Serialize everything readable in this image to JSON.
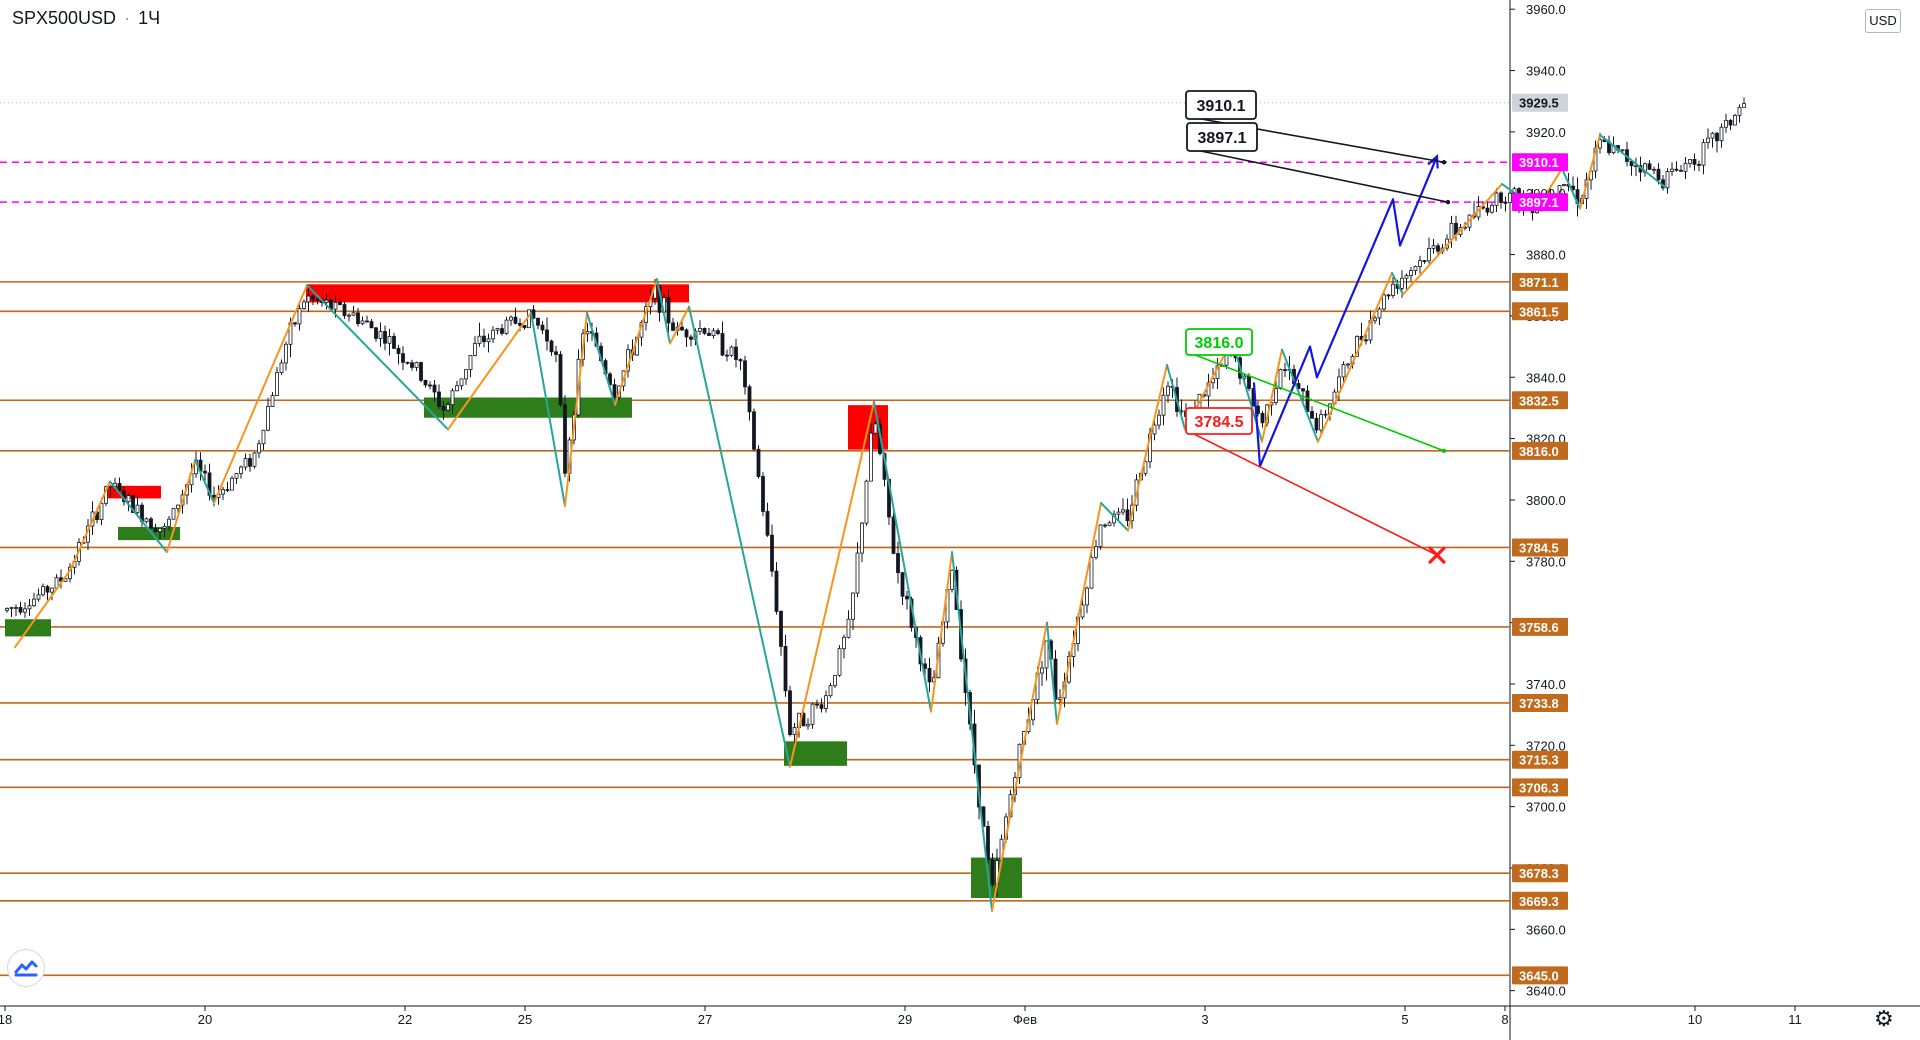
{
  "header": {
    "symbol": "SPX500USD",
    "interval": "1Ч",
    "currency_badge": "USD"
  },
  "icons": {
    "logo": "tradingview-logo-icon",
    "settings": "gear-icon"
  },
  "colors": {
    "level_line": "#c2661a",
    "level_label_bg": "#c06a1e",
    "resistance_line": "#ff00ff",
    "resistance_label_bg": "#ff00ff",
    "current_price_bg": "#cfd3da",
    "supply_zone": "#ff0000",
    "demand_zone": "#2e7d1a",
    "zigzag_up": "#f7941d",
    "zigzag_down": "#26a69a",
    "projection": "#1515e0",
    "candle": "#131722",
    "target_green": "#00cc00",
    "target_red": "#ff1a1a"
  },
  "chart_data": {
    "type": "candlestick",
    "title": "SPX500USD · 1Ч",
    "y_axis": {
      "range": [
        3635,
        3963
      ],
      "ticks": [
        3640.0,
        3660.0,
        3680.0,
        3700.0,
        3720.0,
        3740.0,
        3760.0,
        3780.0,
        3800.0,
        3820.0,
        3840.0,
        3860.0,
        3880.0,
        3900.0,
        3920.0,
        3940.0,
        3960.0
      ]
    },
    "x_axis": {
      "range": [
        0,
        18.5
      ],
      "ticks": [
        {
          "label": "18",
          "x": 0
        },
        {
          "label": "20",
          "x": 2
        },
        {
          "label": "22",
          "x": 4
        },
        {
          "label": "25",
          "x": 5.2
        },
        {
          "label": "27",
          "x": 7
        },
        {
          "label": "29",
          "x": 9
        },
        {
          "label": "Фев",
          "x": 10.2
        },
        {
          "label": "3",
          "x": 12
        },
        {
          "label": "5",
          "x": 14
        },
        {
          "label": "8",
          "x": 15
        },
        {
          "label": "10",
          "x": 16.9
        },
        {
          "label": "11",
          "x": 17.9
        }
      ]
    },
    "current_price": 3929.5,
    "levels": [
      3871.1,
      3861.5,
      3832.5,
      3816.0,
      3784.5,
      3758.6,
      3733.8,
      3715.3,
      3706.3,
      3678.3,
      3669.3,
      3645.0
    ],
    "resistance_levels": [
      3910.1,
      3897.1
    ],
    "zones": [
      {
        "kind": "supply",
        "x0": 1.0,
        "x1": 1.56,
        "y0": 3800.5,
        "y1": 3804.6
      },
      {
        "kind": "demand",
        "x0": 1.13,
        "x1": 1.75,
        "y0": 3786.9,
        "y1": 3791.2
      },
      {
        "kind": "demand",
        "x0": 0.0,
        "x1": 0.46,
        "y0": 3755.5,
        "y1": 3761.1
      },
      {
        "kind": "supply",
        "x0": 3.01,
        "x1": 6.84,
        "y0": 3864.4,
        "y1": 3870.3
      },
      {
        "kind": "demand",
        "x0": 4.19,
        "x1": 6.27,
        "y0": 3826.8,
        "y1": 3833.4
      },
      {
        "kind": "supply",
        "x0": 8.43,
        "x1": 8.83,
        "y0": 3816.4,
        "y1": 3830.9
      },
      {
        "kind": "demand",
        "x0": 7.79,
        "x1": 8.42,
        "y0": 3713.3,
        "y1": 3721.3
      },
      {
        "kind": "demand",
        "x0": 9.66,
        "x1": 10.17,
        "y0": 3670.2,
        "y1": 3683.4
      }
    ],
    "zigzag": [
      {
        "x": 0.1,
        "y": 3752
      },
      {
        "x": 0.65,
        "y": 3777
      },
      {
        "x": 1.05,
        "y": 3806
      },
      {
        "x": 1.62,
        "y": 3783
      },
      {
        "x": 1.9,
        "y": 3813
      },
      {
        "x": 2.09,
        "y": 3799
      },
      {
        "x": 3.02,
        "y": 3870
      },
      {
        "x": 4.43,
        "y": 3823
      },
      {
        "x": 5.26,
        "y": 3861
      },
      {
        "x": 5.6,
        "y": 3798
      },
      {
        "x": 5.82,
        "y": 3861
      },
      {
        "x": 6.1,
        "y": 3831
      },
      {
        "x": 6.52,
        "y": 3872
      },
      {
        "x": 6.65,
        "y": 3851
      },
      {
        "x": 6.84,
        "y": 3863
      },
      {
        "x": 7.85,
        "y": 3713
      },
      {
        "x": 8.69,
        "y": 3832
      },
      {
        "x": 9.26,
        "y": 3731
      },
      {
        "x": 9.47,
        "y": 3783
      },
      {
        "x": 9.87,
        "y": 3666
      },
      {
        "x": 10.42,
        "y": 3760
      },
      {
        "x": 10.52,
        "y": 3727
      },
      {
        "x": 10.96,
        "y": 3799
      },
      {
        "x": 11.23,
        "y": 3790
      },
      {
        "x": 11.62,
        "y": 3844
      },
      {
        "x": 11.8,
        "y": 3823
      },
      {
        "x": 12.27,
        "y": 3852
      },
      {
        "x": 12.57,
        "y": 3819
      },
      {
        "x": 12.77,
        "y": 3849
      },
      {
        "x": 13.13,
        "y": 3819
      },
      {
        "x": 13.87,
        "y": 3874
      },
      {
        "x": 13.98,
        "y": 3867
      },
      {
        "x": 14.97,
        "y": 3903
      },
      {
        "x": 15.32,
        "y": 3895
      },
      {
        "x": 15.57,
        "y": 3908
      },
      {
        "x": 15.75,
        "y": 3895
      },
      {
        "x": 15.95,
        "y": 3919
      },
      {
        "x": 16.6,
        "y": 3902
      }
    ],
    "projection": [
      {
        "x": 12.49,
        "y": 3838
      },
      {
        "x": 12.55,
        "y": 3811
      },
      {
        "x": 13.05,
        "y": 3850
      },
      {
        "x": 13.12,
        "y": 3840
      },
      {
        "x": 13.88,
        "y": 3898
      },
      {
        "x": 13.95,
        "y": 3883
      },
      {
        "x": 14.32,
        "y": 3912
      }
    ],
    "targets": [
      {
        "label": "3910.1",
        "color": "black",
        "x": 14.39,
        "y": 3910.1
      },
      {
        "label": "3897.1",
        "color": "black",
        "x": 14.43,
        "y": 3897.1
      },
      {
        "label": "3816.0",
        "color": "green",
        "x": 14.39,
        "y": 3816.0
      },
      {
        "label": "3784.5",
        "color": "red",
        "x": 14.32,
        "y": 3782
      }
    ],
    "price_path": [
      {
        "x": 0.0,
        "y": 3764
      },
      {
        "x": 0.3,
        "y": 3768
      },
      {
        "x": 0.6,
        "y": 3775
      },
      {
        "x": 0.9,
        "y": 3795
      },
      {
        "x": 1.05,
        "y": 3805
      },
      {
        "x": 1.3,
        "y": 3797
      },
      {
        "x": 1.6,
        "y": 3790
      },
      {
        "x": 1.9,
        "y": 3811
      },
      {
        "x": 2.1,
        "y": 3801
      },
      {
        "x": 2.5,
        "y": 3815
      },
      {
        "x": 2.8,
        "y": 3850
      },
      {
        "x": 3.0,
        "y": 3866
      },
      {
        "x": 3.5,
        "y": 3860
      },
      {
        "x": 3.8,
        "y": 3853
      },
      {
        "x": 4.1,
        "y": 3843
      },
      {
        "x": 4.4,
        "y": 3829
      },
      {
        "x": 4.7,
        "y": 3850
      },
      {
        "x": 5.0,
        "y": 3857
      },
      {
        "x": 5.26,
        "y": 3860
      },
      {
        "x": 5.5,
        "y": 3850
      },
      {
        "x": 5.6,
        "y": 3810
      },
      {
        "x": 5.8,
        "y": 3858
      },
      {
        "x": 6.1,
        "y": 3835
      },
      {
        "x": 6.5,
        "y": 3868
      },
      {
        "x": 6.7,
        "y": 3855
      },
      {
        "x": 7.0,
        "y": 3856
      },
      {
        "x": 7.35,
        "y": 3845
      },
      {
        "x": 7.5,
        "y": 3815
      },
      {
        "x": 7.7,
        "y": 3770
      },
      {
        "x": 7.85,
        "y": 3725
      },
      {
        "x": 8.2,
        "y": 3735
      },
      {
        "x": 8.45,
        "y": 3760
      },
      {
        "x": 8.69,
        "y": 3828
      },
      {
        "x": 8.9,
        "y": 3780
      },
      {
        "x": 9.26,
        "y": 3736
      },
      {
        "x": 9.47,
        "y": 3778
      },
      {
        "x": 9.65,
        "y": 3725
      },
      {
        "x": 9.87,
        "y": 3672
      },
      {
        "x": 10.1,
        "y": 3712
      },
      {
        "x": 10.42,
        "y": 3755
      },
      {
        "x": 10.52,
        "y": 3733
      },
      {
        "x": 10.96,
        "y": 3793
      },
      {
        "x": 11.23,
        "y": 3795
      },
      {
        "x": 11.62,
        "y": 3840
      },
      {
        "x": 11.8,
        "y": 3826
      },
      {
        "x": 12.27,
        "y": 3848
      },
      {
        "x": 12.57,
        "y": 3825
      },
      {
        "x": 12.77,
        "y": 3845
      },
      {
        "x": 13.13,
        "y": 3824
      },
      {
        "x": 13.5,
        "y": 3850
      },
      {
        "x": 13.87,
        "y": 3870
      },
      {
        "x": 14.4,
        "y": 3885
      },
      {
        "x": 14.97,
        "y": 3900
      },
      {
        "x": 15.32,
        "y": 3897
      },
      {
        "x": 15.57,
        "y": 3905
      },
      {
        "x": 15.75,
        "y": 3898
      },
      {
        "x": 15.95,
        "y": 3916
      },
      {
        "x": 16.6,
        "y": 3905
      },
      {
        "x": 17.0,
        "y": 3914
      },
      {
        "x": 17.4,
        "y": 3929.5
      }
    ]
  }
}
